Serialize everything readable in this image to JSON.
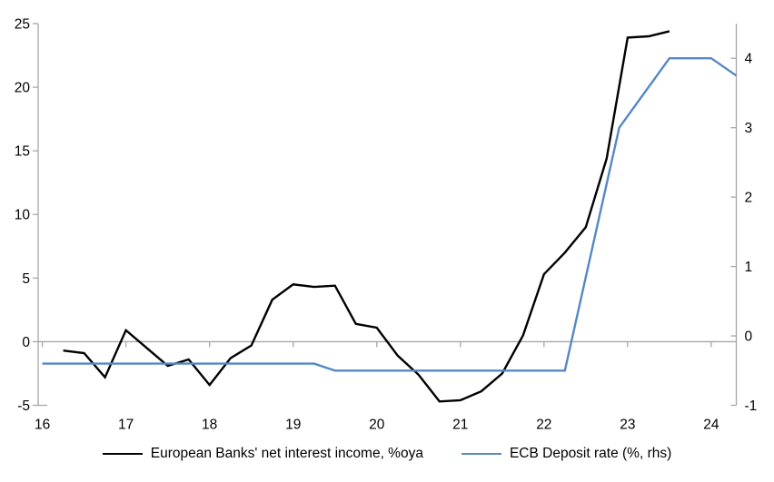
{
  "chart_data": {
    "type": "line",
    "title": "",
    "xlabel": "",
    "ylabel_left": "",
    "ylabel_right": "",
    "grid": "zero_line_only",
    "legend_position": "bottom-center",
    "x_axis": {
      "ticks": [
        16,
        17,
        18,
        19,
        20,
        21,
        22,
        23,
        24
      ],
      "range": [
        15.95,
        24.3
      ]
    },
    "left_axis": {
      "ticks": [
        -5,
        0,
        5,
        10,
        15,
        20,
        25
      ],
      "range": [
        -5,
        25
      ]
    },
    "right_axis": {
      "ticks": [
        -1,
        0,
        1,
        2,
        3,
        4
      ],
      "range": [
        -1,
        4.5
      ]
    },
    "series": [
      {
        "id": "nii",
        "name": "European Banks' net interest income, %oya",
        "axis": "left",
        "color": "#000000",
        "x": [
          16.25,
          16.5,
          16.75,
          17.0,
          17.25,
          17.5,
          17.75,
          18.0,
          18.25,
          18.5,
          18.75,
          19.0,
          19.25,
          19.5,
          19.75,
          20.0,
          20.25,
          20.5,
          20.75,
          21.0,
          21.25,
          21.5,
          21.75,
          22.0,
          22.25,
          22.5,
          22.75,
          23.0,
          23.25,
          23.5
        ],
        "values": [
          -0.7,
          -0.9,
          -2.8,
          0.9,
          -0.5,
          -1.9,
          -1.4,
          -3.4,
          -1.3,
          -0.3,
          3.3,
          4.5,
          4.3,
          4.4,
          1.4,
          1.1,
          -1.1,
          -2.6,
          -4.7,
          -4.6,
          -3.9,
          -2.5,
          0.5,
          5.3,
          7.0,
          9.0,
          14.4,
          23.9,
          24.0,
          24.4
        ]
      },
      {
        "id": "ecb-deposit-rate",
        "name": "ECB Deposit rate (%, rhs)",
        "axis": "right",
        "color": "#5588c4",
        "x": [
          16.0,
          19.25,
          19.5,
          22.25,
          22.9,
          23.5,
          24.0,
          24.3
        ],
        "values": [
          -0.4,
          -0.4,
          -0.5,
          -0.5,
          3.0,
          4.0,
          4.0,
          3.75
        ]
      }
    ]
  },
  "colors": {
    "axis": "#a6a6a6",
    "text": "#000000",
    "background": "#ffffff"
  }
}
